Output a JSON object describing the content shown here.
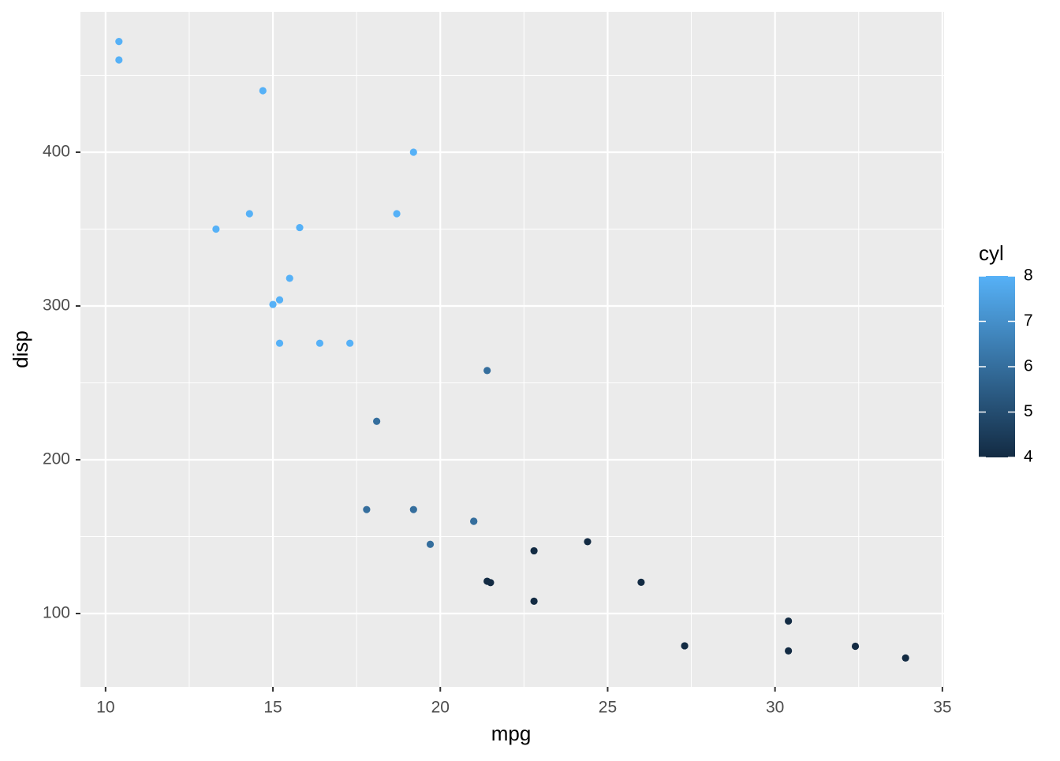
{
  "chart_data": {
    "type": "scatter",
    "x_label": "mpg",
    "y_label": "disp",
    "legend_title": "cyl",
    "x": [
      21.0,
      21.0,
      22.8,
      21.4,
      18.7,
      18.1,
      14.3,
      24.4,
      22.8,
      19.2,
      17.8,
      16.4,
      17.3,
      15.2,
      10.4,
      10.4,
      14.7,
      32.4,
      30.4,
      33.9,
      21.5,
      15.5,
      15.2,
      13.3,
      19.2,
      27.3,
      26.0,
      30.4,
      15.8,
      19.7,
      15.0,
      21.4
    ],
    "y": [
      160,
      160,
      108,
      258,
      360,
      225,
      360,
      146.7,
      140.8,
      167.6,
      167.6,
      275.8,
      275.8,
      275.8,
      472,
      460,
      440,
      78.7,
      75.7,
      71.1,
      120.1,
      318,
      304,
      350,
      400,
      79,
      120.3,
      95.1,
      351,
      145,
      301,
      121
    ],
    "color_values": [
      6,
      6,
      4,
      6,
      8,
      6,
      8,
      4,
      4,
      6,
      6,
      8,
      8,
      8,
      8,
      8,
      8,
      4,
      4,
      4,
      4,
      8,
      8,
      8,
      8,
      4,
      4,
      4,
      8,
      6,
      8,
      4
    ],
    "color_low": "#132B43",
    "color_high": "#56B1F7",
    "color_lim": [
      4,
      8
    ],
    "color_ticks": [
      4,
      5,
      6,
      7,
      8
    ],
    "xlim": [
      9.25,
      35.05
    ],
    "ylim": [
      52.3,
      491.3
    ],
    "xticks": [
      10,
      15,
      20,
      25,
      30,
      35
    ],
    "yticks": [
      100,
      200,
      300,
      400
    ],
    "minor_xticks": [
      12.5,
      17.5,
      22.5,
      27.5,
      32.5
    ],
    "minor_yticks": [
      150,
      250,
      350,
      450
    ],
    "grid": true
  }
}
